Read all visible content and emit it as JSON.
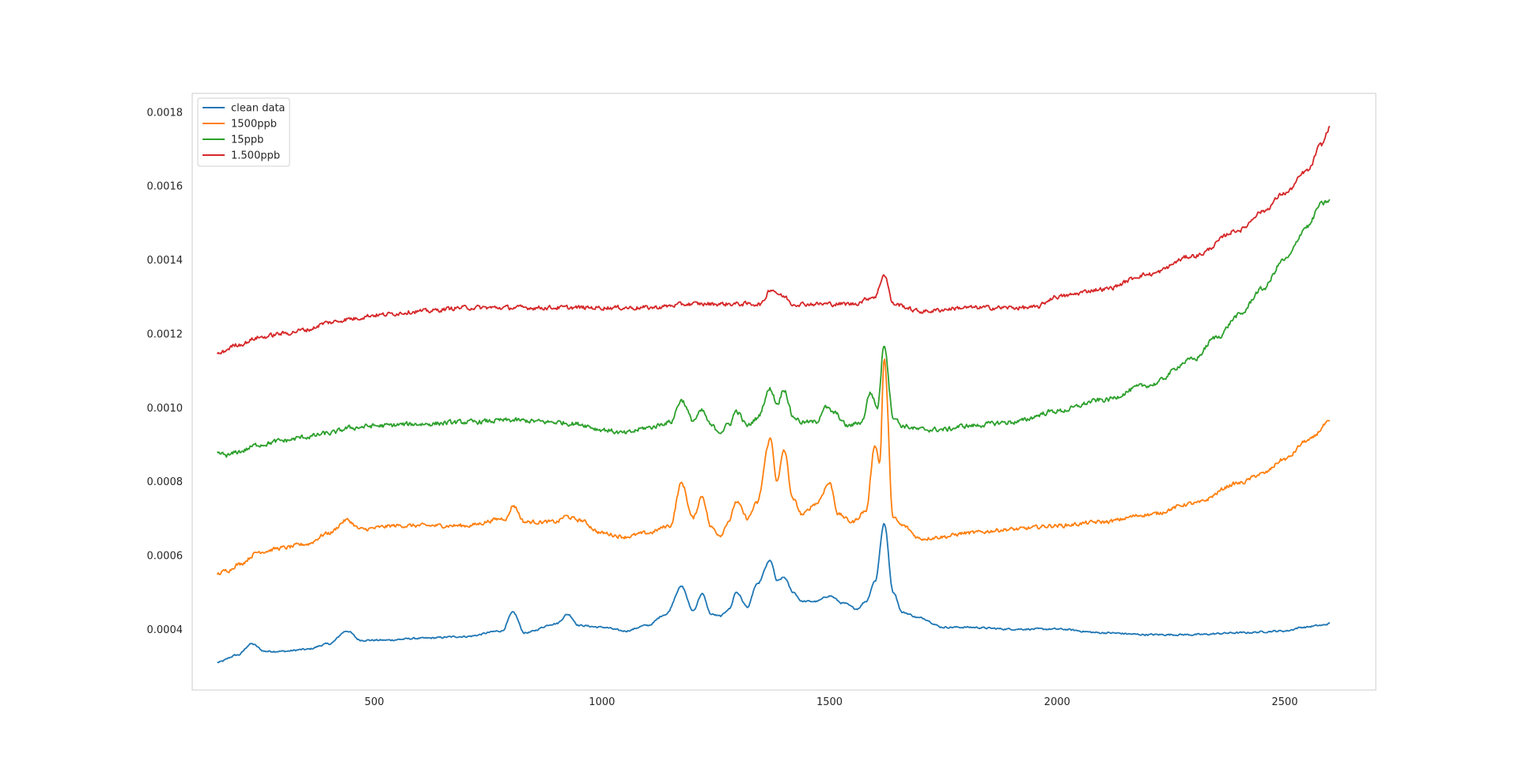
{
  "chart_data": {
    "type": "line",
    "title": "",
    "xlabel": "",
    "ylabel": "",
    "xlim": [
      100,
      2700
    ],
    "ylim": [
      0.000235,
      0.00185
    ],
    "grid": false,
    "legend_position": "top-left",
    "x_ticks": [
      500,
      1000,
      1500,
      2000,
      2500
    ],
    "x_tick_labels": [
      "500",
      "1000",
      "1500",
      "2000",
      "2500"
    ],
    "y_ticks": [
      0.0004,
      0.0006,
      0.0008,
      0.001,
      0.0012,
      0.0014,
      0.0016,
      0.0018
    ],
    "y_tick_labels": [
      "0.0004",
      "0.0006",
      "0.0008",
      "0.0010",
      "0.0012",
      "0.0014",
      "0.0016",
      "0.0018"
    ],
    "series": [
      {
        "name": "clean data",
        "color": "#1f77b4",
        "x": [
          155,
          200,
          230,
          260,
          300,
          350,
          400,
          440,
          470,
          520,
          600,
          700,
          780,
          805,
          830,
          900,
          925,
          950,
          1000,
          1050,
          1100,
          1140,
          1175,
          1200,
          1220,
          1240,
          1260,
          1280,
          1295,
          1320,
          1340,
          1370,
          1385,
          1400,
          1420,
          1440,
          1470,
          1500,
          1530,
          1560,
          1580,
          1600,
          1620,
          1640,
          1660,
          1700,
          1750,
          1800,
          1900,
          2000,
          2100,
          2200,
          2300,
          2400,
          2500,
          2540,
          2580,
          2600
        ],
        "y": [
          0.00031,
          0.00033,
          0.00036,
          0.00034,
          0.00034,
          0.000345,
          0.00036,
          0.000395,
          0.00037,
          0.00037,
          0.000375,
          0.00038,
          0.000395,
          0.000445,
          0.00039,
          0.000415,
          0.00044,
          0.00041,
          0.000405,
          0.000395,
          0.00041,
          0.00044,
          0.000515,
          0.00045,
          0.000495,
          0.00044,
          0.000435,
          0.000455,
          0.0005,
          0.00046,
          0.00052,
          0.000585,
          0.00053,
          0.00054,
          0.0005,
          0.000475,
          0.000475,
          0.00049,
          0.00047,
          0.000455,
          0.000475,
          0.00053,
          0.000685,
          0.0005,
          0.000445,
          0.00043,
          0.000405,
          0.000405,
          0.0004,
          0.0004,
          0.00039,
          0.000385,
          0.000385,
          0.00039,
          0.000395,
          0.000405,
          0.00041,
          0.000415
        ]
      },
      {
        "name": "1500ppb",
        "color": "#ff7f0e",
        "x": [
          155,
          180,
          200,
          250,
          300,
          350,
          400,
          440,
          470,
          550,
          700,
          790,
          805,
          830,
          900,
          920,
          950,
          1000,
          1050,
          1100,
          1150,
          1175,
          1200,
          1220,
          1240,
          1260,
          1280,
          1295,
          1320,
          1340,
          1370,
          1385,
          1400,
          1420,
          1440,
          1470,
          1500,
          1520,
          1550,
          1580,
          1600,
          1610,
          1620,
          1640,
          1660,
          1700,
          1750,
          1800,
          1900,
          2000,
          2100,
          2200,
          2300,
          2400,
          2450,
          2500,
          2550,
          2600
        ],
        "y": [
          0.00055,
          0.00056,
          0.000575,
          0.00061,
          0.00062,
          0.00063,
          0.00066,
          0.000695,
          0.00067,
          0.00068,
          0.00068,
          0.0007,
          0.000735,
          0.00069,
          0.00069,
          0.000705,
          0.000695,
          0.00066,
          0.00065,
          0.00066,
          0.00068,
          0.000795,
          0.0007,
          0.00076,
          0.000675,
          0.000655,
          0.000695,
          0.000745,
          0.0007,
          0.00074,
          0.000915,
          0.0008,
          0.000885,
          0.00075,
          0.00071,
          0.00074,
          0.000795,
          0.00071,
          0.00069,
          0.00072,
          0.0009,
          0.00085,
          0.00113,
          0.0007,
          0.00068,
          0.000645,
          0.00065,
          0.00066,
          0.00067,
          0.00068,
          0.00069,
          0.00071,
          0.00074,
          0.000795,
          0.00082,
          0.00086,
          0.00091,
          0.00096
        ]
      },
      {
        "name": "15ppb",
        "color": "#2ca02c",
        "x": [
          155,
          180,
          200,
          250,
          300,
          350,
          400,
          450,
          500,
          600,
          700,
          800,
          900,
          950,
          1000,
          1050,
          1100,
          1150,
          1175,
          1200,
          1220,
          1240,
          1260,
          1280,
          1295,
          1320,
          1340,
          1370,
          1385,
          1400,
          1420,
          1440,
          1470,
          1490,
          1510,
          1540,
          1570,
          1590,
          1605,
          1620,
          1640,
          1660,
          1700,
          1750,
          1800,
          1900,
          2000,
          2100,
          2200,
          2300,
          2350,
          2400,
          2450,
          2500,
          2550,
          2580,
          2600
        ],
        "y": [
          0.000875,
          0.00087,
          0.00088,
          0.0009,
          0.00091,
          0.00092,
          0.00093,
          0.000945,
          0.00095,
          0.000955,
          0.00096,
          0.000965,
          0.00096,
          0.000955,
          0.00094,
          0.00093,
          0.000945,
          0.00096,
          0.00102,
          0.000965,
          0.00099,
          0.00095,
          0.000935,
          0.000955,
          0.00099,
          0.00095,
          0.00097,
          0.00105,
          0.00101,
          0.00105,
          0.000975,
          0.00096,
          0.00096,
          0.001,
          0.000985,
          0.00095,
          0.00096,
          0.00104,
          0.001,
          0.00117,
          0.000975,
          0.00095,
          0.00094,
          0.00094,
          0.00095,
          0.00096,
          0.00099,
          0.00102,
          0.00106,
          0.00113,
          0.00119,
          0.00125,
          0.00132,
          0.0014,
          0.00149,
          0.00155,
          0.00156
        ]
      },
      {
        "name": "1.500ppb",
        "color": "#d62728",
        "x": [
          155,
          200,
          250,
          300,
          350,
          400,
          450,
          500,
          600,
          700,
          800,
          900,
          1000,
          1100,
          1200,
          1300,
          1350,
          1370,
          1400,
          1420,
          1450,
          1500,
          1550,
          1600,
          1620,
          1640,
          1700,
          1800,
          1900,
          1950,
          2000,
          2100,
          2200,
          2300,
          2400,
          2450,
          2500,
          2550,
          2580,
          2600
        ],
        "y": [
          0.001145,
          0.00117,
          0.00119,
          0.0012,
          0.00121,
          0.00123,
          0.00124,
          0.00125,
          0.00126,
          0.00127,
          0.00127,
          0.00127,
          0.00127,
          0.00127,
          0.00128,
          0.00128,
          0.00128,
          0.00132,
          0.0013,
          0.00128,
          0.00128,
          0.00128,
          0.00128,
          0.0013,
          0.00136,
          0.00128,
          0.00126,
          0.00127,
          0.00127,
          0.00127,
          0.0013,
          0.00132,
          0.00136,
          0.00141,
          0.00148,
          0.00153,
          0.00158,
          0.00164,
          0.00171,
          0.00176
        ]
      }
    ]
  }
}
